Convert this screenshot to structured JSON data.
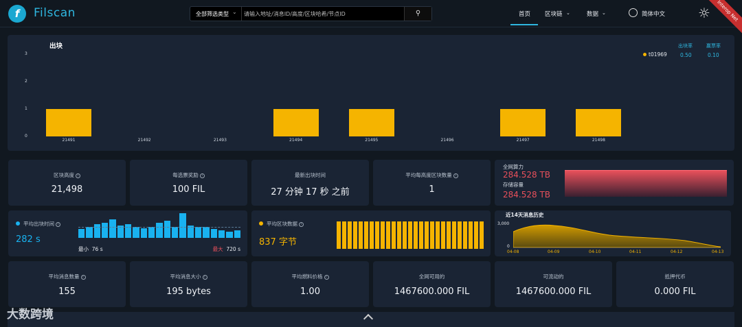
{
  "header": {
    "brand": "Filscan",
    "search_filter": "全部筛选类型",
    "search_placeholder": "请输入地址/消息ID/高度/区块哈希/节点ID",
    "nav": [
      "首页",
      "区块链",
      "数据"
    ],
    "language": "简体中文",
    "ribbon": "Interop Net"
  },
  "block_chart": {
    "title": "出块",
    "legend": {
      "name": "t01969",
      "col1_header": "出块率",
      "col2_header": "赢票率",
      "col1_value": "0.50",
      "col2_value": "0.10"
    }
  },
  "chart_data": {
    "type": "bar",
    "title": "出块",
    "categories": [
      "21491",
      "21492",
      "21493",
      "21494",
      "21495",
      "21496",
      "21497",
      "21498"
    ],
    "series": [
      {
        "name": "t01969",
        "values": [
          1,
          0,
          0,
          1,
          1,
          0,
          1,
          1
        ]
      }
    ],
    "ylim": [
      0,
      3
    ],
    "yticks": [
      "0",
      "1",
      "2",
      "3"
    ],
    "colors": {
      "bar": "#f5b400"
    }
  },
  "stats_row1": [
    {
      "label": "区块高度",
      "value": "21,498"
    },
    {
      "label": "每选票奖励",
      "value": "100 FIL"
    },
    {
      "label": "最新出块时间",
      "value": "27 分钟 17 秒 之前"
    },
    {
      "label": "平均每高度区块数量",
      "value": "1"
    }
  ],
  "network": {
    "power_label": "全网算力",
    "power_value": "284.528 TB",
    "storage_label": "存储容量",
    "storage_value": "284.528 TB",
    "value_color": "#e8505b"
  },
  "avg_block_time": {
    "label": "平均出块时间",
    "value": "282 s",
    "min_label": "最小",
    "min_value": "76 s",
    "max_label": "最大",
    "max_value": "720 s",
    "bars": [
      0.35,
      0.45,
      0.55,
      0.6,
      0.75,
      0.5,
      0.55,
      0.45,
      0.4,
      0.45,
      0.6,
      0.7,
      0.45,
      1.0,
      0.5,
      0.45,
      0.45,
      0.35,
      0.3,
      0.25,
      0.3
    ]
  },
  "avg_block_size": {
    "label": "平均区块数据",
    "value": "837 字节",
    "bars": [
      1,
      1,
      1,
      1,
      1,
      1,
      1,
      1,
      1,
      1,
      1,
      1,
      1,
      1,
      1,
      1,
      1,
      1,
      1,
      1,
      1,
      1,
      1,
      1,
      1,
      1,
      1
    ]
  },
  "message_history": {
    "title": "近14天消息历史",
    "ymax_label": "3,000",
    "ymin_label": "0",
    "dates": [
      "04-08",
      "04-09",
      "04-10",
      "04-11",
      "04-12",
      "04-13"
    ]
  },
  "stats_row3": [
    {
      "label": "平均消息数量",
      "value": "155"
    },
    {
      "label": "平均消息大小",
      "value": "195 bytes"
    },
    {
      "label": "平均燃料价格",
      "value": "1.00"
    },
    {
      "label": "全网可用的",
      "value": "1467600.000 FIL"
    },
    {
      "label": "可流动的",
      "value": "1467600.000 FIL"
    },
    {
      "label": "抵押代币",
      "value": "0.000 FIL"
    }
  ],
  "watermark": "大数跨境"
}
